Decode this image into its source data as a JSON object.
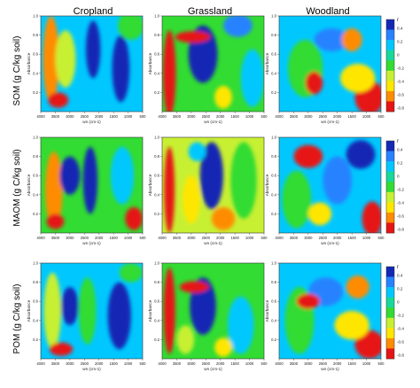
{
  "chart_data": {
    "type": "heatmap",
    "columns": [
      "Cropland",
      "Grassland",
      "Woodland"
    ],
    "rows": [
      "SOM (g C/kg soil)",
      "MAOM (g C/kg soil)",
      "POM (g C/kg soil)"
    ],
    "xlabel": "wn (cm-1)",
    "ylabel": "Absorbance",
    "xlim": [
      4000,
      500
    ],
    "x_ticks": [
      "4000",
      "3500",
      "3000",
      "2500",
      "2000",
      "1500",
      "1000",
      "500"
    ],
    "ylim": [
      0,
      1.0
    ],
    "y_ticks": [
      "0.2",
      "0.4",
      "0.6",
      "0.8",
      "1.0"
    ],
    "colorbar": {
      "title": "r",
      "ticks": [
        "0.4",
        "0.2",
        "0",
        "-0.2",
        "-0.4",
        "-0.6",
        "-0.8"
      ],
      "colors": [
        "#1428b4",
        "#2882ff",
        "#00c8ff",
        "#18d89a",
        "#32dc32",
        "#c8f032",
        "#ffe600",
        "#ff8c00",
        "#e61414"
      ]
    },
    "panels": [
      {
        "row": 0,
        "col": 0,
        "bg": "#00c8ff",
        "blobs": [
          {
            "x": 3650,
            "y": 0.55,
            "rx": 280,
            "ry": 0.45,
            "color": "#ff8c00"
          },
          {
            "x": 3150,
            "y": 0.55,
            "rx": 350,
            "ry": 0.3,
            "color": "#c8f032"
          },
          {
            "x": 2200,
            "y": 0.65,
            "rx": 250,
            "ry": 0.3,
            "color": "#1428b4"
          },
          {
            "x": 1250,
            "y": 0.45,
            "rx": 300,
            "ry": 0.35,
            "color": "#1428b4"
          },
          {
            "x": 3400,
            "y": 0.12,
            "rx": 350,
            "ry": 0.08,
            "color": "#e61414"
          },
          {
            "x": 900,
            "y": 0.9,
            "rx": 450,
            "ry": 0.15,
            "color": "#32dc32"
          }
        ]
      },
      {
        "row": 0,
        "col": 1,
        "bg": "#32dc32",
        "blobs": [
          {
            "x": 3750,
            "y": 0.4,
            "rx": 220,
            "ry": 0.45,
            "color": "#e61414"
          },
          {
            "x": 2600,
            "y": 0.6,
            "rx": 500,
            "ry": 0.3,
            "color": "#1428b4"
          },
          {
            "x": 2950,
            "y": 0.78,
            "rx": 600,
            "ry": 0.06,
            "color": "#e61414"
          },
          {
            "x": 1400,
            "y": 0.9,
            "rx": 500,
            "ry": 0.12,
            "color": "#2882ff"
          },
          {
            "x": 1900,
            "y": 0.15,
            "rx": 300,
            "ry": 0.12,
            "color": "#ffe600"
          },
          {
            "x": 900,
            "y": 0.35,
            "rx": 400,
            "ry": 0.3,
            "color": "#00c8ff"
          }
        ]
      },
      {
        "row": 0,
        "col": 2,
        "bg": "#00c8ff",
        "blobs": [
          {
            "x": 900,
            "y": 0.15,
            "rx": 500,
            "ry": 0.18,
            "color": "#e61414"
          },
          {
            "x": 1300,
            "y": 0.35,
            "rx": 600,
            "ry": 0.15,
            "color": "#ffe600"
          },
          {
            "x": 2200,
            "y": 0.75,
            "rx": 600,
            "ry": 0.12,
            "color": "#2882ff"
          },
          {
            "x": 3100,
            "y": 0.45,
            "rx": 600,
            "ry": 0.3,
            "color": "#32dc32"
          },
          {
            "x": 2800,
            "y": 0.3,
            "rx": 300,
            "ry": 0.12,
            "color": "#e61414"
          },
          {
            "x": 1500,
            "y": 0.75,
            "rx": 350,
            "ry": 0.12,
            "color": "#ff8c00"
          }
        ]
      },
      {
        "row": 1,
        "col": 0,
        "bg": "#32dc32",
        "blobs": [
          {
            "x": 3550,
            "y": 0.45,
            "rx": 300,
            "ry": 0.4,
            "color": "#ff8c00"
          },
          {
            "x": 3000,
            "y": 0.6,
            "rx": 350,
            "ry": 0.2,
            "color": "#1428b4"
          },
          {
            "x": 2300,
            "y": 0.55,
            "rx": 250,
            "ry": 0.35,
            "color": "#1428b4"
          },
          {
            "x": 1200,
            "y": 0.6,
            "rx": 400,
            "ry": 0.3,
            "color": "#00c8ff"
          },
          {
            "x": 800,
            "y": 0.15,
            "rx": 300,
            "ry": 0.12,
            "color": "#e61414"
          },
          {
            "x": 3500,
            "y": 0.12,
            "rx": 300,
            "ry": 0.08,
            "color": "#e61414"
          }
        ]
      },
      {
        "row": 1,
        "col": 1,
        "bg": "#c8f032",
        "blobs": [
          {
            "x": 3750,
            "y": 0.45,
            "rx": 180,
            "ry": 0.45,
            "color": "#e61414"
          },
          {
            "x": 2300,
            "y": 0.6,
            "rx": 400,
            "ry": 0.35,
            "color": "#1428b4"
          },
          {
            "x": 1200,
            "y": 0.55,
            "rx": 450,
            "ry": 0.4,
            "color": "#32dc32"
          },
          {
            "x": 3000,
            "y": 0.35,
            "rx": 300,
            "ry": 0.25,
            "color": "#ffe600"
          },
          {
            "x": 1900,
            "y": 0.15,
            "rx": 400,
            "ry": 0.12,
            "color": "#ff8c00"
          },
          {
            "x": 2800,
            "y": 0.85,
            "rx": 300,
            "ry": 0.1,
            "color": "#00c8ff"
          }
        ]
      },
      {
        "row": 1,
        "col": 2,
        "bg": "#00c8ff",
        "blobs": [
          {
            "x": 3400,
            "y": 0.35,
            "rx": 500,
            "ry": 0.3,
            "color": "#32dc32"
          },
          {
            "x": 2000,
            "y": 0.55,
            "rx": 500,
            "ry": 0.25,
            "color": "#2882ff"
          },
          {
            "x": 800,
            "y": 0.15,
            "rx": 350,
            "ry": 0.18,
            "color": "#e61414"
          },
          {
            "x": 1200,
            "y": 0.82,
            "rx": 500,
            "ry": 0.15,
            "color": "#1428b4"
          },
          {
            "x": 3000,
            "y": 0.8,
            "rx": 500,
            "ry": 0.12,
            "color": "#e61414"
          },
          {
            "x": 2600,
            "y": 0.2,
            "rx": 400,
            "ry": 0.12,
            "color": "#ffe600"
          }
        ]
      },
      {
        "row": 2,
        "col": 0,
        "bg": "#00c8ff",
        "blobs": [
          {
            "x": 3600,
            "y": 0.5,
            "rx": 300,
            "ry": 0.4,
            "color": "#c8f032"
          },
          {
            "x": 3000,
            "y": 0.55,
            "rx": 300,
            "ry": 0.2,
            "color": "#1428b4"
          },
          {
            "x": 2400,
            "y": 0.5,
            "rx": 300,
            "ry": 0.35,
            "color": "#32dc32"
          },
          {
            "x": 1300,
            "y": 0.45,
            "rx": 400,
            "ry": 0.35,
            "color": "#1428b4"
          },
          {
            "x": 3300,
            "y": 0.1,
            "rx": 400,
            "ry": 0.07,
            "color": "#e61414"
          },
          {
            "x": 900,
            "y": 0.9,
            "rx": 400,
            "ry": 0.1,
            "color": "#32dc32"
          }
        ]
      },
      {
        "row": 2,
        "col": 1,
        "bg": "#32dc32",
        "blobs": [
          {
            "x": 3750,
            "y": 0.5,
            "rx": 200,
            "ry": 0.45,
            "color": "#e61414"
          },
          {
            "x": 2600,
            "y": 0.55,
            "rx": 450,
            "ry": 0.3,
            "color": "#1428b4"
          },
          {
            "x": 2900,
            "y": 0.75,
            "rx": 500,
            "ry": 0.06,
            "color": "#e61414"
          },
          {
            "x": 1300,
            "y": 0.35,
            "rx": 450,
            "ry": 0.3,
            "color": "#00c8ff"
          },
          {
            "x": 1900,
            "y": 0.12,
            "rx": 300,
            "ry": 0.1,
            "color": "#ffe600"
          },
          {
            "x": 3200,
            "y": 0.2,
            "rx": 300,
            "ry": 0.15,
            "color": "#c8f032"
          }
        ]
      },
      {
        "row": 2,
        "col": 2,
        "bg": "#00c8ff",
        "blobs": [
          {
            "x": 900,
            "y": 0.15,
            "rx": 500,
            "ry": 0.15,
            "color": "#e61414"
          },
          {
            "x": 1500,
            "y": 0.35,
            "rx": 600,
            "ry": 0.15,
            "color": "#ffe600"
          },
          {
            "x": 2400,
            "y": 0.7,
            "rx": 600,
            "ry": 0.15,
            "color": "#2882ff"
          },
          {
            "x": 3300,
            "y": 0.4,
            "rx": 500,
            "ry": 0.35,
            "color": "#32dc32"
          },
          {
            "x": 3000,
            "y": 0.6,
            "rx": 400,
            "ry": 0.08,
            "color": "#e61414"
          },
          {
            "x": 1300,
            "y": 0.75,
            "rx": 400,
            "ry": 0.12,
            "color": "#ff8c00"
          }
        ]
      }
    ]
  }
}
